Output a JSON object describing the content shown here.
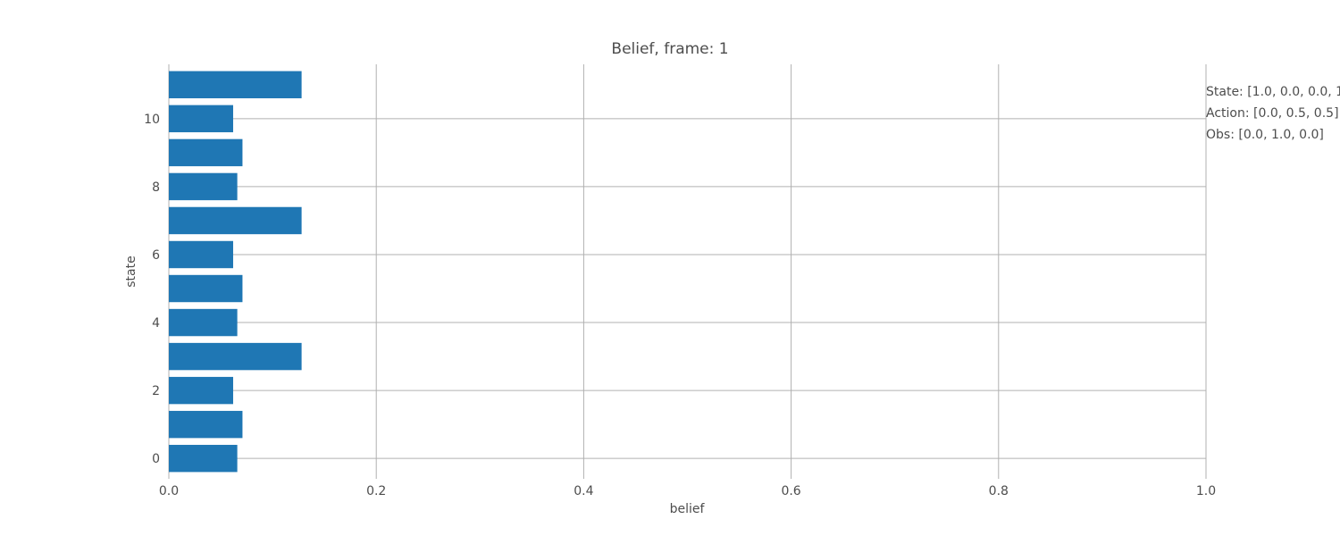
{
  "chart_data": {
    "type": "bar",
    "orientation": "horizontal",
    "title": "Belief,   frame: 1",
    "xlabel": "belief",
    "ylabel": "state",
    "xlim": [
      0.0,
      1.0
    ],
    "ylim": [
      -0.6,
      11.6
    ],
    "xticks": [
      "0.0",
      "0.2",
      "0.4",
      "0.6",
      "0.8",
      "1.0"
    ],
    "yticks": [
      "0",
      "2",
      "4",
      "6",
      "8",
      "10"
    ],
    "grid": true,
    "categories": [
      0,
      1,
      2,
      3,
      4,
      5,
      6,
      7,
      8,
      9,
      10,
      11
    ],
    "values": [
      0.066,
      0.071,
      0.062,
      0.128,
      0.066,
      0.071,
      0.062,
      0.128,
      0.066,
      0.071,
      0.062,
      0.128
    ],
    "bar_color": "#1f77b4",
    "annotations": [
      "State: [1.0, 0.0, 0.0, 1",
      "Action: [0.0, 0.5, 0.5]",
      "Obs: [0.0, 1.0, 0.0]"
    ]
  }
}
